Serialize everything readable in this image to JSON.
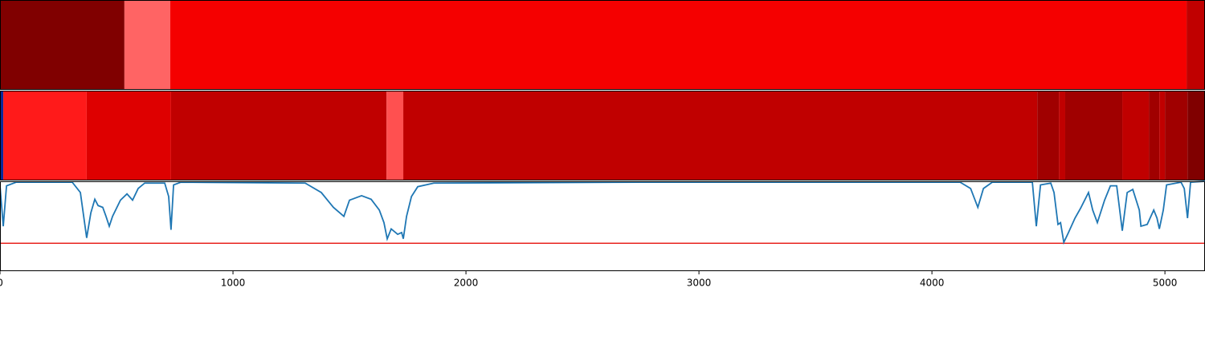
{
  "chart_data": [
    {
      "type": "segments",
      "xlim": [
        0,
        5172
      ],
      "edges": [
        0,
        534,
        731,
        5093,
        5172
      ],
      "colors": [
        "#800000",
        "#ff6464",
        "#f50000",
        "#c00000"
      ]
    },
    {
      "type": "segments",
      "xlim": [
        0,
        5172
      ],
      "edges": [
        0,
        14,
        372,
        734,
        1659,
        1731,
        4452,
        4545,
        4572,
        4817,
        4931,
        4976,
        5000,
        5097,
        5172
      ],
      "colors": [
        "#0a2a9a",
        "#ff1a1a",
        "#de0000",
        "#c00000",
        "#ff5050",
        "#c00000",
        "#a00000",
        "#c00000",
        "#a00000",
        "#c00000",
        "#a00000",
        "#c00000",
        "#a00000",
        "#800000"
      ]
    },
    {
      "type": "line",
      "xlim": [
        0,
        5172
      ],
      "ylim": [
        0,
        1
      ],
      "xticks": [
        0,
        1000,
        2000,
        3000,
        4000,
        5000
      ],
      "color": "#1f77b4",
      "threshold": 0.31,
      "threshold_color": "#e8231e",
      "x": [
        0,
        14,
        28,
        69,
        310,
        345,
        372,
        390,
        407,
        421,
        441,
        455,
        469,
        483,
        517,
        545,
        569,
        593,
        621,
        707,
        724,
        734,
        745,
        776,
        1310,
        1379,
        1431,
        1476,
        1500,
        1552,
        1593,
        1628,
        1648,
        1662,
        1679,
        1707,
        1724,
        1731,
        1745,
        1766,
        1793,
        1862,
        2759,
        4121,
        4166,
        4197,
        4221,
        4259,
        4431,
        4448,
        4466,
        4510,
        4524,
        4541,
        4552,
        4566,
        4586,
        4614,
        4638,
        4672,
        4690,
        4710,
        4741,
        4766,
        4793,
        4817,
        4838,
        4862,
        4890,
        4897,
        4924,
        4952,
        4966,
        4976,
        4993,
        5007,
        5069,
        5083,
        5097,
        5110,
        5172
      ],
      "values": [
        0.95,
        0.5,
        0.95,
        0.99,
        0.99,
        0.875,
        0.37,
        0.65,
        0.8,
        0.73,
        0.71,
        0.61,
        0.5,
        0.61,
        0.79,
        0.86,
        0.79,
        0.92,
        0.98,
        0.98,
        0.83,
        0.46,
        0.96,
        0.99,
        0.98,
        0.875,
        0.71,
        0.61,
        0.79,
        0.84,
        0.8,
        0.68,
        0.54,
        0.36,
        0.47,
        0.41,
        0.43,
        0.36,
        0.61,
        0.83,
        0.94,
        0.98,
        0.99,
        0.99,
        0.92,
        0.71,
        0.92,
        0.99,
        0.99,
        0.5,
        0.96,
        0.98,
        0.875,
        0.52,
        0.54,
        0.32,
        0.43,
        0.59,
        0.7,
        0.875,
        0.68,
        0.54,
        0.79,
        0.95,
        0.95,
        0.45,
        0.875,
        0.91,
        0.68,
        0.5,
        0.52,
        0.68,
        0.59,
        0.47,
        0.68,
        0.96,
        0.99,
        0.92,
        0.59,
        0.99,
        1.0
      ]
    }
  ]
}
